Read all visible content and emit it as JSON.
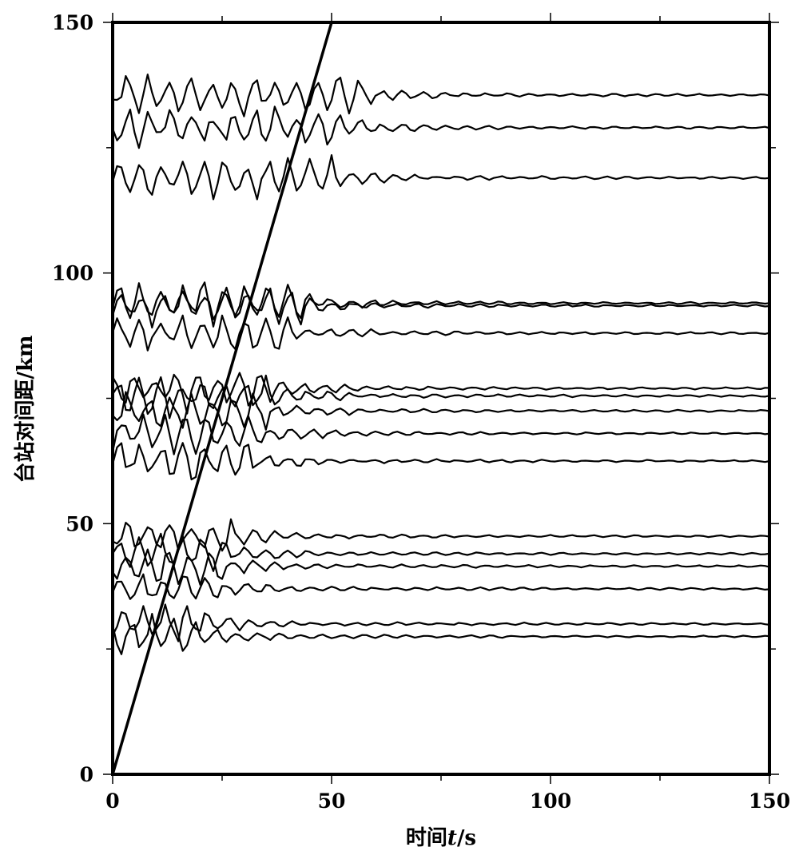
{
  "chart_data": {
    "type": "line",
    "xlabel_prefix": "时间",
    "xlabel_var": "t",
    "xlabel_unit": "/s",
    "ylabel": "台站对间距/km",
    "xlim": [
      0,
      150
    ],
    "ylim": [
      0,
      150
    ],
    "x_ticks": [
      0,
      50,
      100,
      150
    ],
    "y_ticks": [
      0,
      50,
      100,
      150
    ],
    "grid": false,
    "reference_line": {
      "x": [
        0,
        50
      ],
      "y": [
        0,
        150
      ]
    },
    "trace_offsets_km": [
      27.5,
      30,
      37,
      41.5,
      44,
      47.5,
      62.5,
      68,
      72.5,
      75.5,
      77,
      88,
      93.5,
      94,
      119,
      129,
      135.5
    ]
  }
}
